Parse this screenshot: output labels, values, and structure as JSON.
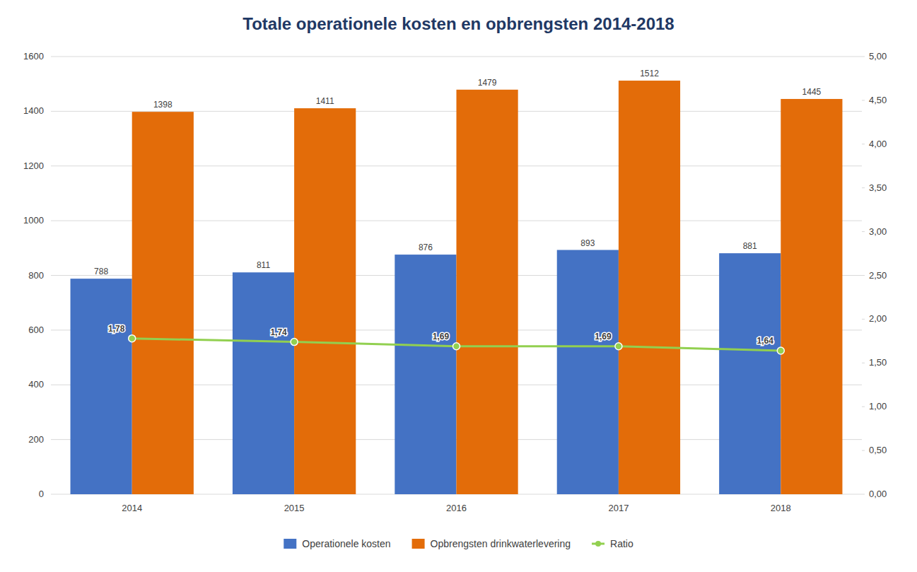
{
  "chart_data": {
    "type": "bar",
    "title": "Totale operationele kosten en opbrengsten 2014-2018",
    "categories": [
      "2014",
      "2015",
      "2016",
      "2017",
      "2018"
    ],
    "series": [
      {
        "name": "Operationele kosten",
        "color": "#4472C4",
        "values": [
          788,
          811,
          876,
          893,
          881
        ]
      },
      {
        "name": "Opbrengsten drinkwaterlevering",
        "color": "#E36C09",
        "values": [
          1398,
          1411,
          1479,
          1512,
          1445
        ]
      },
      {
        "name": "Ratio",
        "type": "line",
        "axis": "y2",
        "color": "#92D050",
        "marker": "circle",
        "values": [
          1.78,
          1.74,
          1.69,
          1.69,
          1.64
        ],
        "value_labels": [
          "1,78",
          "1,74",
          "1,69",
          "1,69",
          "1,64"
        ]
      }
    ],
    "ylim": [
      0,
      1600
    ],
    "yticks": [
      0,
      200,
      400,
      600,
      800,
      1000,
      1200,
      1400,
      1600
    ],
    "y2lim": [
      0,
      5.0
    ],
    "y2ticks": [
      {
        "value": 0.0,
        "label": "0,00"
      },
      {
        "value": 0.5,
        "label": "0,50"
      },
      {
        "value": 1.0,
        "label": "1,00"
      },
      {
        "value": 1.5,
        "label": "1,50"
      },
      {
        "value": 2.0,
        "label": "2,00"
      },
      {
        "value": 2.5,
        "label": "2,50"
      },
      {
        "value": 3.0,
        "label": "3,00"
      },
      {
        "value": 3.5,
        "label": "3,50"
      },
      {
        "value": 4.0,
        "label": "4,00"
      },
      {
        "value": 4.5,
        "label": "4,50"
      },
      {
        "value": 5.0,
        "label": "5,00"
      }
    ],
    "grid": true,
    "legend": "bottom",
    "data_labels": true
  }
}
